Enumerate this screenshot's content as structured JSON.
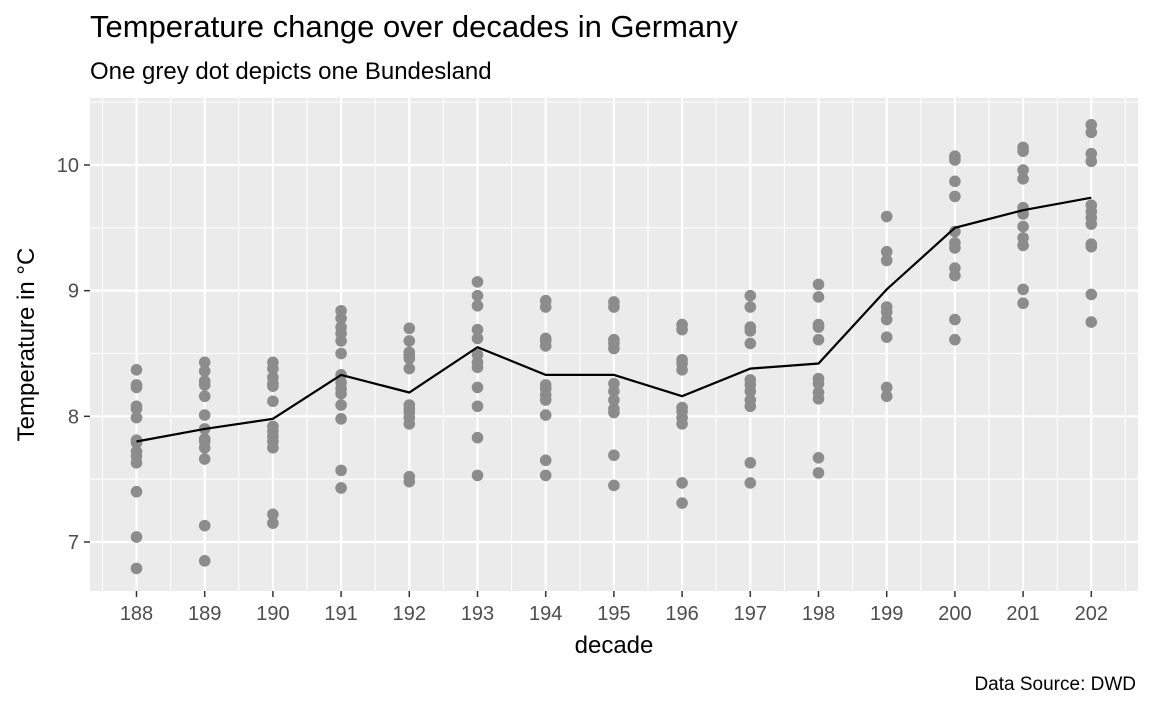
{
  "chart_data": {
    "type": "scatter",
    "title": "Temperature change over decades in Germany",
    "subtitle": "One grey dot depicts one Bundesland",
    "caption": "Data Source: DWD",
    "xlabel": "decade",
    "ylabel": "Temperature in °C",
    "categories": [
      "188",
      "189",
      "190",
      "191",
      "192",
      "193",
      "194",
      "195",
      "196",
      "197",
      "198",
      "199",
      "200",
      "201",
      "202"
    ],
    "ylim": [
      6.6,
      10.5
    ],
    "yticks": [
      7,
      8,
      9,
      10
    ],
    "grid": true,
    "legend": "none",
    "colors": {
      "panel": "#ebebeb",
      "grid": "#ffffff",
      "points": "#8c8c8c",
      "line": "#000000",
      "tick_text": "#4d4d4d"
    },
    "series": [
      {
        "kind": "points",
        "points": [
          [
            "188",
            6.79
          ],
          [
            "188",
            7.04
          ],
          [
            "188",
            7.4
          ],
          [
            "188",
            7.63
          ],
          [
            "188",
            7.68
          ],
          [
            "188",
            7.72
          ],
          [
            "188",
            7.79
          ],
          [
            "188",
            7.81
          ],
          [
            "188",
            7.99
          ],
          [
            "188",
            8.06
          ],
          [
            "188",
            8.08
          ],
          [
            "188",
            8.23
          ],
          [
            "188",
            8.25
          ],
          [
            "188",
            8.37
          ],
          [
            "189",
            6.85
          ],
          [
            "189",
            7.13
          ],
          [
            "189",
            7.66
          ],
          [
            "189",
            7.75
          ],
          [
            "189",
            7.8
          ],
          [
            "189",
            7.82
          ],
          [
            "189",
            7.9
          ],
          [
            "189",
            8.01
          ],
          [
            "189",
            8.16
          ],
          [
            "189",
            8.25
          ],
          [
            "189",
            8.28
          ],
          [
            "189",
            8.36
          ],
          [
            "189",
            8.43
          ],
          [
            "190",
            7.15
          ],
          [
            "190",
            7.22
          ],
          [
            "190",
            7.75
          ],
          [
            "190",
            7.8
          ],
          [
            "190",
            7.84
          ],
          [
            "190",
            7.88
          ],
          [
            "190",
            7.92
          ],
          [
            "190",
            8.12
          ],
          [
            "190",
            8.24
          ],
          [
            "190",
            8.26
          ],
          [
            "190",
            8.31
          ],
          [
            "190",
            8.38
          ],
          [
            "190",
            8.43
          ],
          [
            "191",
            7.43
          ],
          [
            "191",
            7.57
          ],
          [
            "191",
            7.98
          ],
          [
            "191",
            8.09
          ],
          [
            "191",
            8.18
          ],
          [
            "191",
            8.22
          ],
          [
            "191",
            8.27
          ],
          [
            "191",
            8.33
          ],
          [
            "191",
            8.5
          ],
          [
            "191",
            8.6
          ],
          [
            "191",
            8.66
          ],
          [
            "191",
            8.71
          ],
          [
            "191",
            8.78
          ],
          [
            "191",
            8.84
          ],
          [
            "192",
            7.48
          ],
          [
            "192",
            7.52
          ],
          [
            "192",
            7.94
          ],
          [
            "192",
            7.99
          ],
          [
            "192",
            8.03
          ],
          [
            "192",
            8.06
          ],
          [
            "192",
            8.09
          ],
          [
            "192",
            8.38
          ],
          [
            "192",
            8.46
          ],
          [
            "192",
            8.49
          ],
          [
            "192",
            8.51
          ],
          [
            "192",
            8.6
          ],
          [
            "192",
            8.7
          ],
          [
            "193",
            7.53
          ],
          [
            "193",
            7.83
          ],
          [
            "193",
            8.08
          ],
          [
            "193",
            8.23
          ],
          [
            "193",
            8.39
          ],
          [
            "193",
            8.43
          ],
          [
            "193",
            8.49
          ],
          [
            "193",
            8.62
          ],
          [
            "193",
            8.69
          ],
          [
            "193",
            8.88
          ],
          [
            "193",
            8.96
          ],
          [
            "193",
            9.07
          ],
          [
            "194",
            7.53
          ],
          [
            "194",
            7.65
          ],
          [
            "194",
            8.01
          ],
          [
            "194",
            8.13
          ],
          [
            "194",
            8.17
          ],
          [
            "194",
            8.22
          ],
          [
            "194",
            8.25
          ],
          [
            "194",
            8.56
          ],
          [
            "194",
            8.6
          ],
          [
            "194",
            8.62
          ],
          [
            "194",
            8.87
          ],
          [
            "194",
            8.92
          ],
          [
            "195",
            7.45
          ],
          [
            "195",
            7.69
          ],
          [
            "195",
            8.03
          ],
          [
            "195",
            8.06
          ],
          [
            "195",
            8.13
          ],
          [
            "195",
            8.2
          ],
          [
            "195",
            8.26
          ],
          [
            "195",
            8.54
          ],
          [
            "195",
            8.58
          ],
          [
            "195",
            8.61
          ],
          [
            "195",
            8.87
          ],
          [
            "195",
            8.91
          ],
          [
            "196",
            7.31
          ],
          [
            "196",
            7.47
          ],
          [
            "196",
            7.94
          ],
          [
            "196",
            7.99
          ],
          [
            "196",
            8.04
          ],
          [
            "196",
            8.07
          ],
          [
            "196",
            8.37
          ],
          [
            "196",
            8.42
          ],
          [
            "196",
            8.45
          ],
          [
            "196",
            8.69
          ],
          [
            "196",
            8.73
          ],
          [
            "197",
            7.47
          ],
          [
            "197",
            7.63
          ],
          [
            "197",
            8.08
          ],
          [
            "197",
            8.13
          ],
          [
            "197",
            8.2
          ],
          [
            "197",
            8.25
          ],
          [
            "197",
            8.29
          ],
          [
            "197",
            8.58
          ],
          [
            "197",
            8.68
          ],
          [
            "197",
            8.71
          ],
          [
            "197",
            8.87
          ],
          [
            "197",
            8.96
          ],
          [
            "198",
            7.55
          ],
          [
            "198",
            7.67
          ],
          [
            "198",
            8.14
          ],
          [
            "198",
            8.19
          ],
          [
            "198",
            8.26
          ],
          [
            "198",
            8.3
          ],
          [
            "198",
            8.61
          ],
          [
            "198",
            8.71
          ],
          [
            "198",
            8.73
          ],
          [
            "198",
            8.95
          ],
          [
            "198",
            9.05
          ],
          [
            "199",
            8.16
          ],
          [
            "199",
            8.23
          ],
          [
            "199",
            8.63
          ],
          [
            "199",
            8.77
          ],
          [
            "199",
            8.83
          ],
          [
            "199",
            8.87
          ],
          [
            "199",
            9.24
          ],
          [
            "199",
            9.31
          ],
          [
            "199",
            9.59
          ],
          [
            "200",
            8.61
          ],
          [
            "200",
            8.77
          ],
          [
            "200",
            9.12
          ],
          [
            "200",
            9.18
          ],
          [
            "200",
            9.34
          ],
          [
            "200",
            9.38
          ],
          [
            "200",
            9.47
          ],
          [
            "200",
            9.75
          ],
          [
            "200",
            9.87
          ],
          [
            "200",
            10.04
          ],
          [
            "200",
            10.07
          ],
          [
            "201",
            8.9
          ],
          [
            "201",
            9.01
          ],
          [
            "201",
            9.36
          ],
          [
            "201",
            9.42
          ],
          [
            "201",
            9.51
          ],
          [
            "201",
            9.61
          ],
          [
            "201",
            9.66
          ],
          [
            "201",
            9.89
          ],
          [
            "201",
            9.96
          ],
          [
            "201",
            10.11
          ],
          [
            "201",
            10.14
          ],
          [
            "202",
            8.75
          ],
          [
            "202",
            8.97
          ],
          [
            "202",
            9.35
          ],
          [
            "202",
            9.37
          ],
          [
            "202",
            9.53
          ],
          [
            "202",
            9.58
          ],
          [
            "202",
            9.63
          ],
          [
            "202",
            9.68
          ],
          [
            "202",
            10.03
          ],
          [
            "202",
            10.09
          ],
          [
            "202",
            10.26
          ],
          [
            "202",
            10.32
          ]
        ]
      },
      {
        "kind": "line",
        "values": [
          7.8,
          7.9,
          7.98,
          8.33,
          8.19,
          8.55,
          8.33,
          8.33,
          8.16,
          8.38,
          8.42,
          9.01,
          9.5,
          9.64,
          9.74
        ]
      }
    ]
  }
}
